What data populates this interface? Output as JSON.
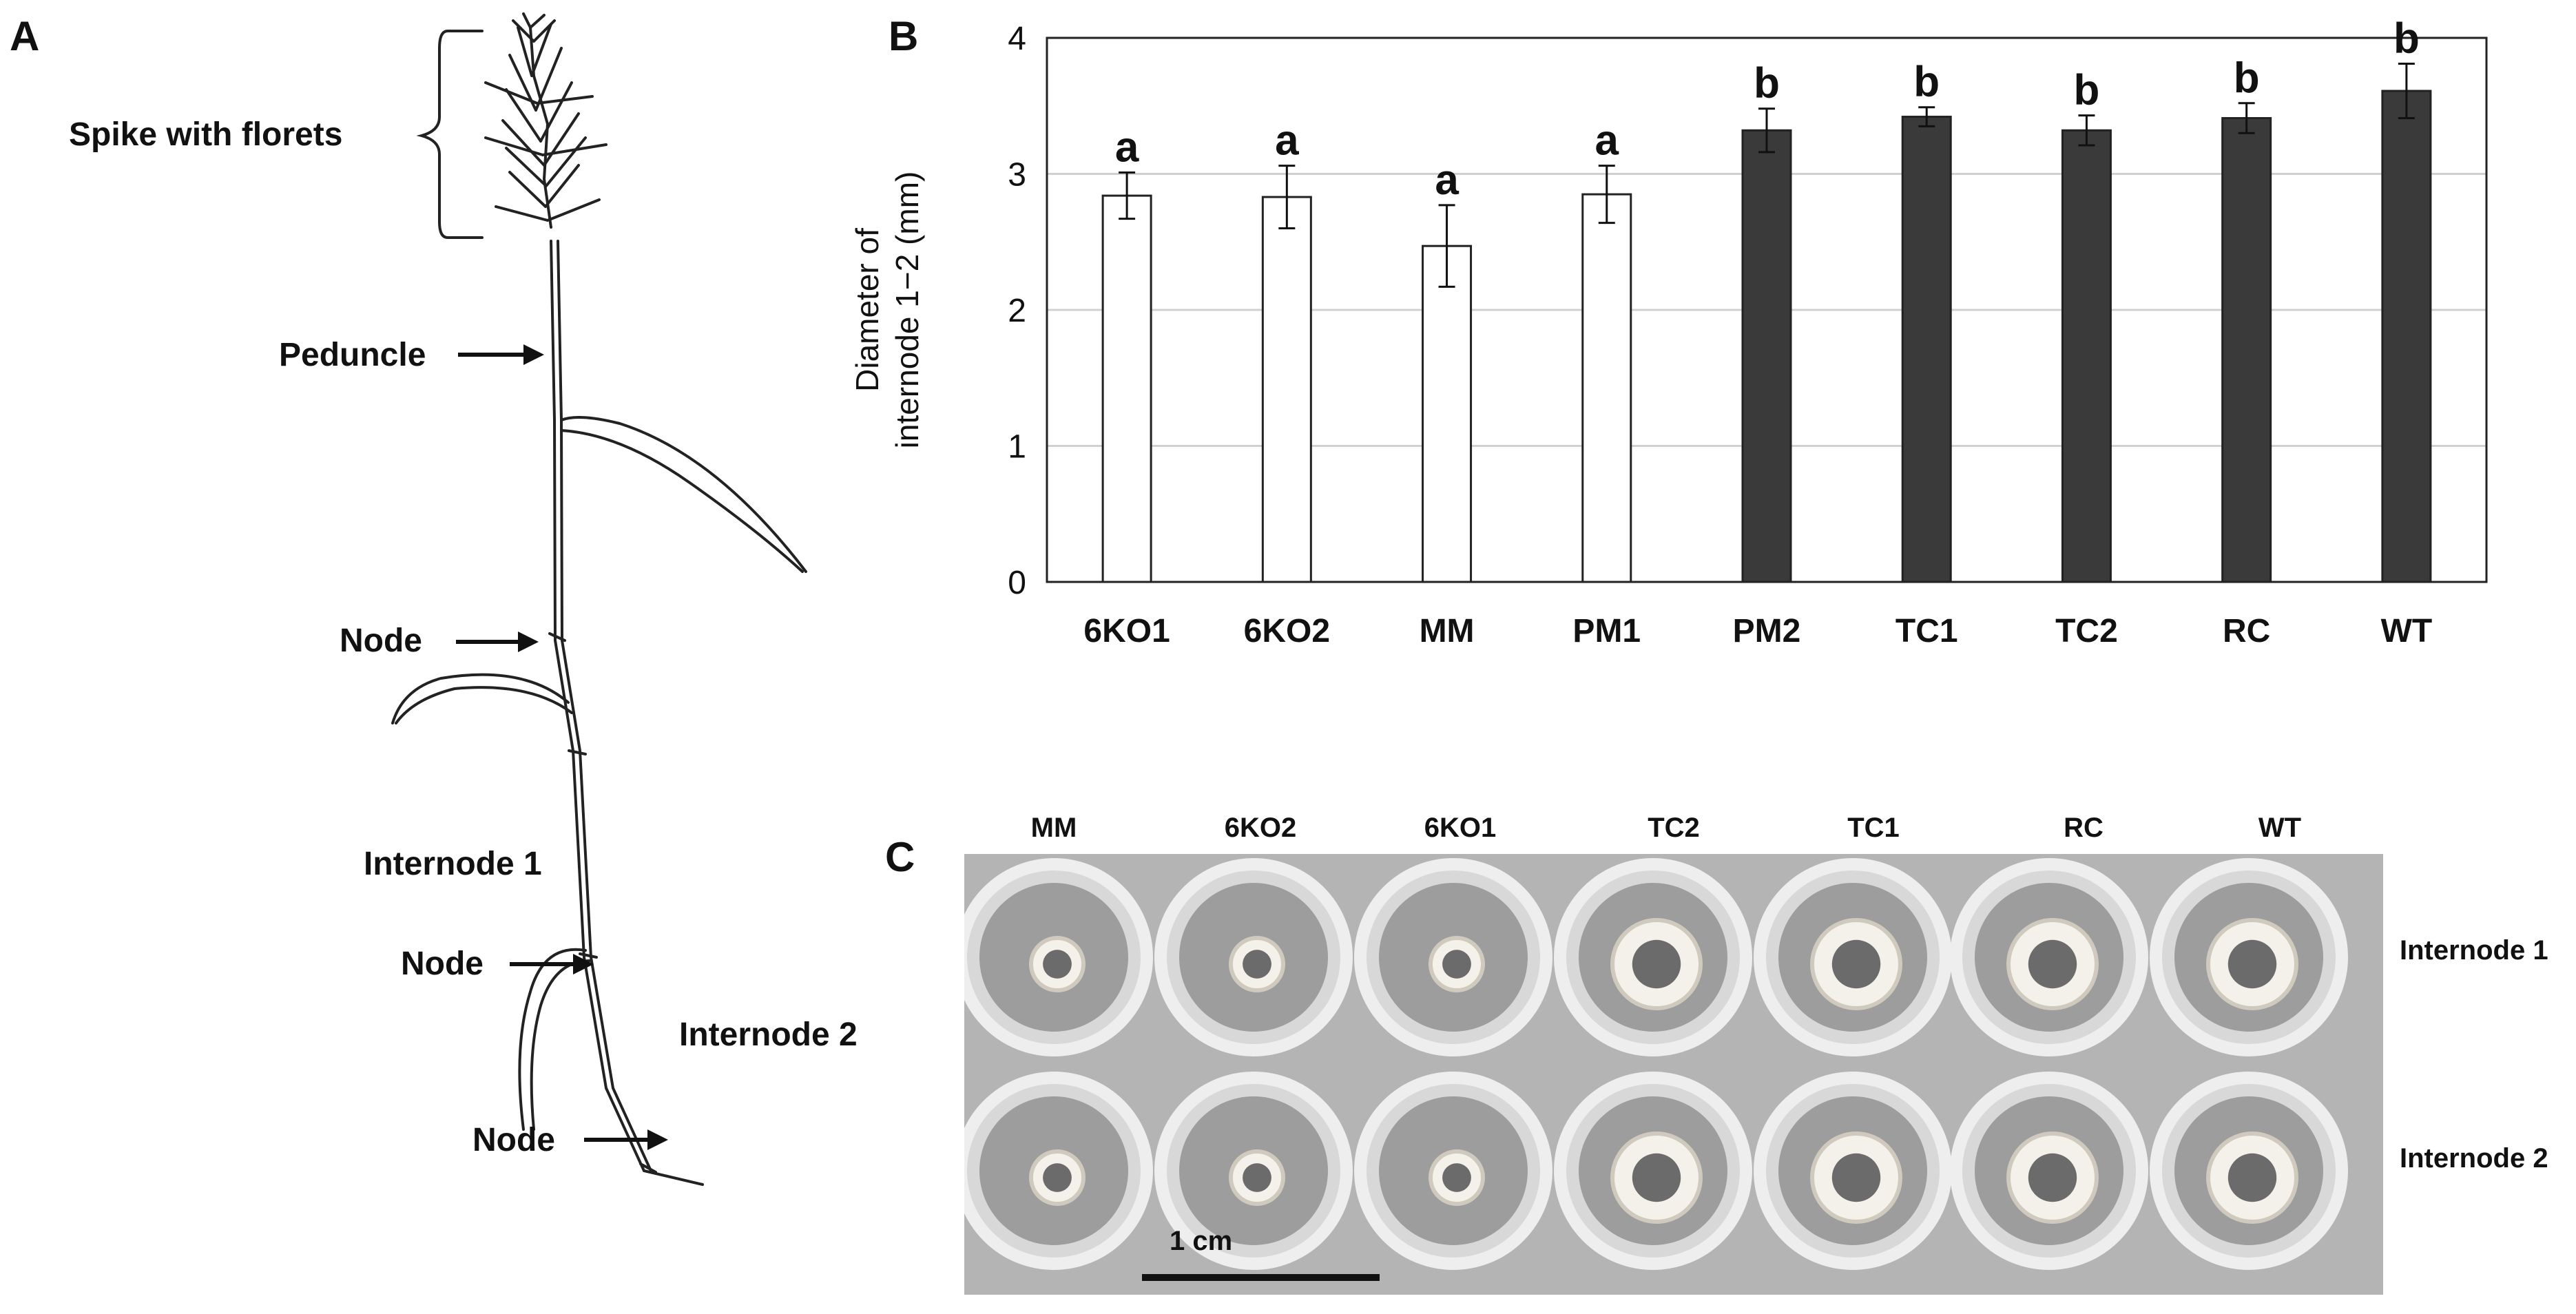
{
  "figure": {
    "panel_labels": {
      "a": "A",
      "b": "B",
      "c": "C"
    },
    "plant_labels": {
      "spike": "Spike with florets",
      "peduncle": "Peduncle",
      "node_upper": "Node",
      "internode1": "Internode 1",
      "node_middle": "Node",
      "internode2": "Internode 2",
      "node_lower": "Node"
    },
    "photo": {
      "columns": [
        "MM",
        "6KO2",
        "6KO1",
        "TC2",
        "TC1",
        "RC",
        "WT"
      ],
      "rows": [
        "Internode 1",
        "Internode 2"
      ],
      "scale_bar": "1 cm"
    }
  },
  "chart_data": {
    "type": "bar",
    "title": "",
    "xlabel": "",
    "ylabel": "Diameter of internode 1−2 (mm)",
    "ylabel_lines": [
      "Diameter of",
      "internode 1−2 (mm)"
    ],
    "ylim": [
      0,
      4
    ],
    "yticks": [
      "0",
      "1",
      "2",
      "3",
      "4"
    ],
    "grid": true,
    "categories": [
      "6KO1",
      "6KO2",
      "MM",
      "PM1",
      "PM2",
      "TC1",
      "TC2",
      "RC",
      "WT"
    ],
    "values": [
      2.84,
      2.83,
      2.47,
      2.85,
      3.32,
      3.42,
      3.32,
      3.41,
      3.61
    ],
    "errors": [
      0.17,
      0.23,
      0.3,
      0.21,
      0.16,
      0.07,
      0.11,
      0.11,
      0.2
    ],
    "significance": [
      "a",
      "a",
      "a",
      "a",
      "b",
      "b",
      "b",
      "b",
      "b"
    ],
    "bar_fill": [
      "#ffffff",
      "#ffffff",
      "#ffffff",
      "#ffffff",
      "#3a3a3a",
      "#3a3a3a",
      "#3a3a3a",
      "#3a3a3a",
      "#3a3a3a"
    ]
  }
}
